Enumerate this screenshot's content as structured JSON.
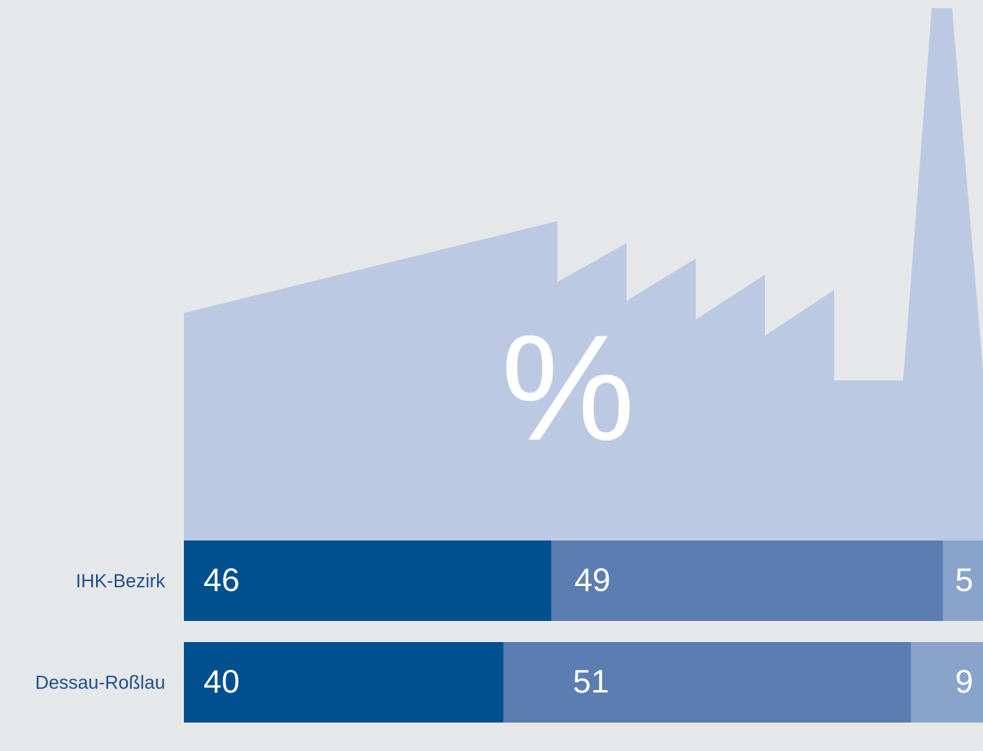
{
  "chart_data": {
    "type": "stacked-bar",
    "orientation": "horizontal",
    "annotation": "%",
    "categories": [
      "IHK-Bezirk",
      "Dessau-Roßlau"
    ],
    "series": [
      {
        "color": "#004f8f",
        "values": [
          46,
          40
        ]
      },
      {
        "color": "#5b7db1",
        "values": [
          49,
          51
        ]
      },
      {
        "color": "#8aa3cb",
        "values": [
          5,
          9
        ]
      }
    ],
    "xlim": [
      0,
      100
    ]
  }
}
